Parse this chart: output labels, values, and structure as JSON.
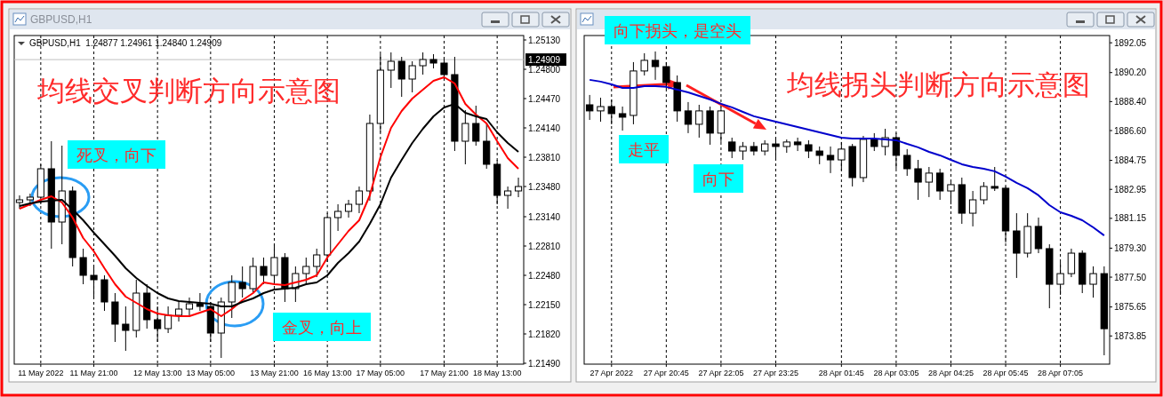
{
  "chart_data": [
    {
      "type": "candlestick",
      "title": "GBPUSD,H1",
      "subtitle": "GBPUSD,H1  1.24877 1.24961 1.24840 1.24909",
      "annotations": [
        "均线交叉判断方向示意图",
        "死叉，向下",
        "金叉，向上"
      ],
      "categories": [
        null,
        null,
        "11 May 2022",
        null,
        null,
        null,
        null,
        "11 May 21:00",
        null,
        null,
        null,
        null,
        null,
        "12 May 13:00",
        null,
        null,
        null,
        null,
        "13 May 05:00",
        null,
        null,
        null,
        null,
        null,
        "13 May 21:00",
        null,
        null,
        null,
        null,
        "16 May 13:00",
        null,
        null,
        null,
        null,
        "17 May 05:00",
        null,
        null,
        null,
        null,
        null,
        "17 May 21:00",
        null,
        null,
        null,
        null,
        "18 May 13:00",
        null,
        null
      ],
      "ohlc": [
        [
          1.233,
          1.2338,
          1.2323,
          1.2333
        ],
        [
          1.2333,
          1.234,
          1.2326,
          1.2336
        ],
        [
          1.2336,
          1.2373,
          1.2328,
          1.2368
        ],
        [
          1.2368,
          1.2399,
          1.2278,
          1.2308
        ],
        [
          1.2308,
          1.2394,
          1.2283,
          1.2343
        ],
        [
          1.2343,
          1.2348,
          1.2258,
          1.2268
        ],
        [
          1.2268,
          1.2278,
          1.2238,
          1.2248
        ],
        [
          1.2248,
          1.2258,
          1.2223,
          1.2243
        ],
        [
          1.2243,
          1.2248,
          1.2208,
          1.2218
        ],
        [
          1.2218,
          1.2228,
          1.2173,
          1.2193
        ],
        [
          1.2193,
          1.2213,
          1.2163,
          1.2186
        ],
        [
          1.2186,
          1.2243,
          1.2178,
          1.2228
        ],
        [
          1.2228,
          1.2238,
          1.2188,
          1.2198
        ],
        [
          1.2198,
          1.2213,
          1.2173,
          1.2188
        ],
        [
          1.2188,
          1.2213,
          1.2183,
          1.2203
        ],
        [
          1.2203,
          1.2218,
          1.2196,
          1.221
        ],
        [
          1.221,
          1.2223,
          1.2203,
          1.2216
        ],
        [
          1.2216,
          1.2228,
          1.2208,
          1.2213
        ],
        [
          1.2213,
          1.2218,
          1.2173,
          1.2183
        ],
        [
          1.2183,
          1.2223,
          1.2155,
          1.2218
        ],
        [
          1.2218,
          1.2248,
          1.22,
          1.224
        ],
        [
          1.224,
          1.2258,
          1.2223,
          1.2233
        ],
        [
          1.2233,
          1.2268,
          1.2228,
          1.2258
        ],
        [
          1.2258,
          1.2268,
          1.2238,
          1.2248
        ],
        [
          1.2248,
          1.2283,
          1.2238,
          1.2268
        ],
        [
          1.2268,
          1.2273,
          1.2218,
          1.2233
        ],
        [
          1.2233,
          1.2258,
          1.2218,
          1.225
        ],
        [
          1.225,
          1.2268,
          1.2238,
          1.2258
        ],
        [
          1.2258,
          1.2278,
          1.2246,
          1.2271
        ],
        [
          1.2271,
          1.2318,
          1.2263,
          1.2313
        ],
        [
          1.2313,
          1.2328,
          1.2298,
          1.232
        ],
        [
          1.232,
          1.2333,
          1.2313,
          1.2328
        ],
        [
          1.2328,
          1.2348,
          1.2318,
          1.2343
        ],
        [
          1.2343,
          1.2429,
          1.2332,
          1.2419
        ],
        [
          1.2419,
          1.2497,
          1.2409,
          1.2479
        ],
        [
          1.2479,
          1.2499,
          1.2459,
          1.2489
        ],
        [
          1.2489,
          1.2494,
          1.2449,
          1.2469
        ],
        [
          1.2469,
          1.2489,
          1.2454,
          1.2484
        ],
        [
          1.2484,
          1.2499,
          1.2474,
          1.2491
        ],
        [
          1.2491,
          1.2497,
          1.2481,
          1.2487
        ],
        [
          1.2487,
          1.2494,
          1.2469,
          1.2474
        ],
        [
          1.2474,
          1.2494,
          1.2388,
          1.2399
        ],
        [
          1.2399,
          1.2434,
          1.2373,
          1.2419
        ],
        [
          1.2419,
          1.2439,
          1.2394,
          1.2399
        ],
        [
          1.2399,
          1.2419,
          1.2368,
          1.2373
        ],
        [
          1.2373,
          1.2378,
          1.2328,
          1.2338
        ],
        [
          1.2338,
          1.2348,
          1.2323,
          1.2343
        ],
        [
          1.2343,
          1.2358,
          1.2336,
          1.2348
        ]
      ],
      "series": [
        {
          "type": "line",
          "color": "#ff0000",
          "values": [
            1.2323,
            1.2328,
            1.2333,
            1.2337,
            1.233,
            1.2313,
            1.229,
            1.2275,
            1.2256,
            1.2238,
            1.2224,
            1.2217,
            1.221,
            1.2205,
            1.2203,
            1.2202,
            1.2202,
            1.2206,
            1.221,
            1.2202,
            1.221,
            1.222,
            1.2228,
            1.224,
            1.2238,
            1.2237,
            1.224,
            1.2243,
            1.2248,
            1.2268,
            1.2283,
            1.2298,
            1.231,
            1.2338,
            1.2381,
            1.2414,
            1.2433,
            1.2447,
            1.2457,
            1.2467,
            1.2471,
            1.2464,
            1.2441,
            1.2429,
            1.2419,
            1.2399,
            1.238,
            1.2368
          ]
        },
        {
          "type": "line",
          "color": "#000000",
          "values": [
            1.2326,
            1.2329,
            1.2331,
            1.2332,
            1.2333,
            1.2322,
            1.231,
            1.2296,
            1.2283,
            1.227,
            1.2256,
            1.2245,
            1.2236,
            1.2228,
            1.2222,
            1.2219,
            1.2218,
            1.2217,
            1.2216,
            1.2213,
            1.2213,
            1.2218,
            1.2222,
            1.2228,
            1.2232,
            1.2233,
            1.2234,
            1.2238,
            1.224,
            1.2248,
            1.2262,
            1.2273,
            1.2286,
            1.2306,
            1.2328,
            1.2358,
            1.2378,
            1.2397,
            1.2413,
            1.2427,
            1.2437,
            1.2441,
            1.2431,
            1.2427,
            1.2424,
            1.2409,
            1.2397,
            1.2387
          ]
        }
      ],
      "ylim": [
        1.2148,
        1.2518
      ],
      "yticks": [
        {
          "value": 1.2513,
          "label": "1.25130"
        },
        {
          "value": 1.248,
          "label": "1.24800"
        },
        {
          "value": 1.2447,
          "label": "1.24470"
        },
        {
          "value": 1.2414,
          "label": "1.24140"
        },
        {
          "value": 1.2381,
          "label": "1.23810"
        },
        {
          "value": 1.2348,
          "label": "1.23480"
        },
        {
          "value": 1.2314,
          "label": "1.23140"
        },
        {
          "value": 1.2281,
          "label": "1.22810"
        },
        {
          "value": 1.2248,
          "label": "1.22480"
        },
        {
          "value": 1.2215,
          "label": "1.22150"
        },
        {
          "value": 1.2182,
          "label": "1.21820"
        },
        {
          "value": 1.2149,
          "label": "1.21490"
        }
      ],
      "ref_lines": [
        {
          "axis": "y",
          "value": 1.24909,
          "label": "1.24909",
          "color": "#c0c0c0"
        }
      ],
      "grid": "x"
    },
    {
      "type": "candlestick",
      "annotations": [
        "均线拐头判断方向示意图",
        "向下拐头，是空头",
        "走平",
        "向下"
      ],
      "categories": [
        null,
        null,
        "27 Apr 2022",
        null,
        null,
        null,
        null,
        "27 Apr 20:45",
        null,
        null,
        null,
        null,
        "27 Apr 22:05",
        null,
        null,
        null,
        null,
        "27 Apr 23:25",
        null,
        null,
        null,
        null,
        null,
        "28 Apr 01:45",
        null,
        null,
        null,
        null,
        "28 Apr 03:05",
        null,
        null,
        null,
        null,
        "28 Apr 04:25",
        null,
        null,
        null,
        null,
        "28 Apr 05:45",
        null,
        null,
        null,
        null,
        "28 Apr 07:05",
        null,
        null,
        null,
        null
      ],
      "ohlc": [
        [
          1888.2,
          1888.81,
          1887.26,
          1887.82
        ],
        [
          1887.82,
          1888.64,
          1887.15,
          1888.09
        ],
        [
          1888.09,
          1888.53,
          1886.99,
          1887.65
        ],
        [
          1887.65,
          1888.09,
          1886.6,
          1887.43
        ],
        [
          1887.54,
          1890.85,
          1886.99,
          1890.3
        ],
        [
          1890.3,
          1891.4,
          1890.02,
          1890.96
        ],
        [
          1890.96,
          1891.51,
          1889.75,
          1890.57
        ],
        [
          1890.57,
          1890.85,
          1889.19,
          1889.58
        ],
        [
          1889.58,
          1890.02,
          1887.15,
          1887.82
        ],
        [
          1887.82,
          1888.37,
          1886.44,
          1886.99
        ],
        [
          1886.99,
          1888.2,
          1886.16,
          1887.82
        ],
        [
          1887.82,
          1888.09,
          1885.72,
          1886.44
        ],
        [
          1886.44,
          1888.09,
          1885.89,
          1887.82
        ],
        [
          1885.89,
          1886.16,
          1884.89,
          1885.33
        ],
        [
          1885.33,
          1885.89,
          1884.78,
          1885.61
        ],
        [
          1885.61,
          1885.89,
          1885.06,
          1885.33
        ],
        [
          1885.33,
          1886.0,
          1885.06,
          1885.77
        ],
        [
          1885.77,
          1886.16,
          1884.89,
          1885.61
        ],
        [
          1885.61,
          1886.05,
          1885.22,
          1885.89
        ],
        [
          1885.89,
          1886.16,
          1885.33,
          1885.72
        ],
        [
          1885.72,
          1886.0,
          1884.89,
          1885.33
        ],
        [
          1885.33,
          1885.61,
          1884.51,
          1885.06
        ],
        [
          1885.06,
          1885.61,
          1883.96,
          1884.78
        ],
        [
          1884.78,
          1885.89,
          1884.12,
          1885.45
        ],
        [
          1885.61,
          1885.77,
          1883.13,
          1883.68
        ],
        [
          1883.68,
          1886.27,
          1883.4,
          1886.05
        ],
        [
          1886.05,
          1886.44,
          1885.33,
          1885.61
        ],
        [
          1885.61,
          1886.71,
          1885.06,
          1886.16
        ],
        [
          1886.16,
          1886.44,
          1884.23,
          1885.06
        ],
        [
          1885.06,
          1885.45,
          1883.79,
          1884.23
        ],
        [
          1884.23,
          1884.78,
          1882.3,
          1883.4
        ],
        [
          1883.4,
          1884.34,
          1882.47,
          1883.96
        ],
        [
          1883.96,
          1884.23,
          1882.3,
          1882.85
        ],
        [
          1882.85,
          1883.4,
          1882.02,
          1883.24
        ],
        [
          1883.24,
          1883.68,
          1880.81,
          1881.47
        ],
        [
          1881.47,
          1882.85,
          1880.65,
          1882.3
        ],
        [
          1882.3,
          1883.4,
          1882.02,
          1883.13
        ],
        [
          1883.13,
          1884.34,
          1882.85,
          1883.02
        ],
        [
          1883.02,
          1883.13,
          1879.65,
          1880.37
        ],
        [
          1880.37,
          1881.47,
          1877.45,
          1878.99
        ],
        [
          1878.99,
          1881.47,
          1878.72,
          1880.65
        ],
        [
          1880.65,
          1881.2,
          1878.99,
          1879.27
        ],
        [
          1879.27,
          1879.54,
          1875.57,
          1877.06
        ],
        [
          1877.06,
          1878.44,
          1876.4,
          1877.72
        ],
        [
          1877.72,
          1879.27,
          1877.5,
          1878.99
        ],
        [
          1878.99,
          1879.16,
          1876.51,
          1877.06
        ],
        [
          1877.06,
          1878.17,
          1876.23,
          1877.72
        ],
        [
          1877.72,
          1878.17,
          1872.65,
          1874.3
        ]
      ],
      "series": [
        {
          "type": "line",
          "color": "#0000cc",
          "values": [
            1889.75,
            1889.64,
            1889.47,
            1889.25,
            1889.25,
            1889.36,
            1889.36,
            1889.31,
            1889.14,
            1888.97,
            1888.75,
            1888.53,
            1888.26,
            1888.04,
            1887.76,
            1887.49,
            1887.32,
            1887.15,
            1886.99,
            1886.82,
            1886.66,
            1886.49,
            1886.33,
            1886.16,
            1886.11,
            1886.11,
            1886.11,
            1886.05,
            1886.0,
            1885.77,
            1885.56,
            1885.28,
            1885.06,
            1884.78,
            1884.51,
            1884.34,
            1884.23,
            1884.07,
            1883.74,
            1883.35,
            1883.02,
            1882.58,
            1881.97,
            1881.53,
            1881.31,
            1881.03,
            1880.59,
            1880.09
          ]
        }
      ],
      "ylim": [
        1872.1,
        1892.5
      ],
      "yticks": [
        1892.05,
        {
          "value": 1890.2,
          "label": "1890.20"
        },
        {
          "value": 1888.4,
          "label": "1888.40"
        },
        {
          "value": 1886.6,
          "label": "1886.60"
        },
        1884.75,
        1882.95,
        1881.15,
        {
          "value": 1879.3,
          "label": "1879.30"
        },
        {
          "value": 1877.5,
          "label": "1877.50"
        },
        1875.65,
        1873.85
      ],
      "grid": "x"
    }
  ]
}
